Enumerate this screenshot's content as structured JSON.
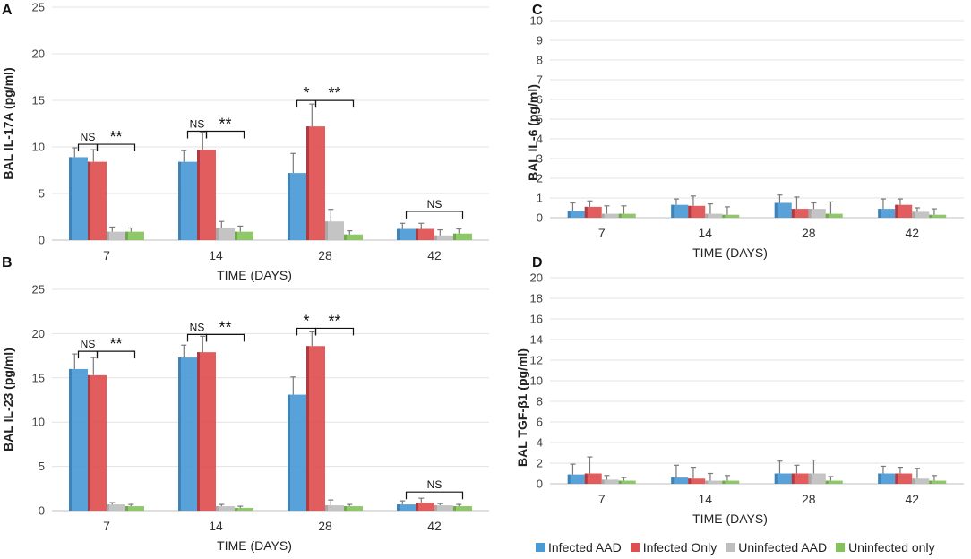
{
  "series_colors": [
    "#4a9ad6",
    "#df4f4f",
    "#bfbfbf",
    "#84c35b"
  ],
  "series_shade": [
    "#3c7fb3",
    "#a8363f",
    "#a6a6a6",
    "#6aa646"
  ],
  "legend": [
    "Infected AAD",
    "Infected Only",
    "Uninfected AAD",
    "Uninfected only"
  ],
  "chart_data": [
    {
      "panel": "A",
      "type": "bar",
      "title": "",
      "xlabel": "TIME (DAYS)",
      "ylabel": "BAL IL-17A (pg/ml)",
      "categories": [
        "7",
        "14",
        "28",
        "42"
      ],
      "ylim": [
        0,
        25
      ],
      "yticks": [
        "0",
        "5",
        "10",
        "15",
        "20",
        "25"
      ],
      "series": [
        {
          "name": "Infected AAD",
          "values": [
            8.9,
            8.4,
            7.2,
            1.2
          ],
          "errors": [
            1.0,
            1.2,
            2.1,
            0.6
          ]
        },
        {
          "name": "Infected Only",
          "values": [
            8.4,
            9.7,
            12.2,
            1.2
          ],
          "errors": [
            1.3,
            1.9,
            2.4,
            0.6
          ]
        },
        {
          "name": "Uninfected AAD",
          "values": [
            0.9,
            1.3,
            2.0,
            0.5
          ],
          "errors": [
            0.5,
            0.7,
            1.3,
            0.6
          ]
        },
        {
          "name": "Uninfected only",
          "values": [
            0.9,
            0.9,
            0.6,
            0.7
          ],
          "errors": [
            0.4,
            0.6,
            0.4,
            0.5
          ]
        }
      ],
      "annotations": [
        {
          "label": "NS",
          "category": 0,
          "from": 0,
          "to": 1,
          "y": 9.9
        },
        {
          "label": "**",
          "category": 0,
          "from": 1,
          "to": 3,
          "y": 9.9
        },
        {
          "label": "NS",
          "category": 1,
          "from": 0,
          "to": 1,
          "y": 11.3
        },
        {
          "label": "**",
          "category": 1,
          "from": 1,
          "to": 3,
          "y": 11.3
        },
        {
          "label": "*",
          "category": 2,
          "from": 0,
          "to": 1,
          "y": 14.6
        },
        {
          "label": "**",
          "category": 2,
          "from": 1,
          "to": 3,
          "y": 14.6
        },
        {
          "label": "NS",
          "category": 3,
          "from": 0,
          "to": 3,
          "y": 2.7
        }
      ]
    },
    {
      "panel": "B",
      "type": "bar",
      "title": "",
      "xlabel": "TIME (DAYS)",
      "ylabel": "BAL  IL-23 (pg/ml)",
      "categories": [
        "7",
        "14",
        "28",
        "42"
      ],
      "ylim": [
        0,
        25
      ],
      "yticks": [
        "0",
        "5",
        "10",
        "15",
        "20",
        "25"
      ],
      "series": [
        {
          "name": "Infected AAD",
          "values": [
            16.0,
            17.3,
            13.1,
            0.7
          ],
          "errors": [
            1.7,
            1.4,
            2.0,
            0.4
          ]
        },
        {
          "name": "Infected Only",
          "values": [
            15.3,
            17.9,
            18.6,
            0.9
          ],
          "errors": [
            2.0,
            1.8,
            1.6,
            0.5
          ]
        },
        {
          "name": "Uninfected AAD",
          "values": [
            0.7,
            0.5,
            0.6,
            0.6
          ],
          "errors": [
            0.2,
            0.2,
            0.6,
            0.2
          ]
        },
        {
          "name": "Uninfected only",
          "values": [
            0.5,
            0.3,
            0.5,
            0.5
          ],
          "errors": [
            0.2,
            0.2,
            0.2,
            0.2
          ]
        }
      ],
      "annotations": [
        {
          "label": "NS",
          "category": 0,
          "from": 0,
          "to": 1,
          "y": 17.6
        },
        {
          "label": "**",
          "category": 0,
          "from": 1,
          "to": 3,
          "y": 17.6
        },
        {
          "label": "NS",
          "category": 1,
          "from": 0,
          "to": 1,
          "y": 19.5
        },
        {
          "label": "**",
          "category": 1,
          "from": 1,
          "to": 3,
          "y": 19.5
        },
        {
          "label": "*",
          "category": 2,
          "from": 0,
          "to": 1,
          "y": 20.2
        },
        {
          "label": "**",
          "category": 2,
          "from": 1,
          "to": 3,
          "y": 20.2
        },
        {
          "label": "NS",
          "category": 3,
          "from": 0,
          "to": 3,
          "y": 1.7
        }
      ]
    },
    {
      "panel": "C",
      "type": "bar",
      "title": "",
      "xlabel": "TIME (DAYS)",
      "ylabel": "BAL IL-6 (pg/ml)",
      "categories": [
        "7",
        "14",
        "28",
        "42"
      ],
      "ylim": [
        0,
        10
      ],
      "yticks": [
        "0",
        "1",
        "2",
        "3",
        "4",
        "5",
        "6",
        "7",
        "8",
        "9",
        "10"
      ],
      "series": [
        {
          "name": "Infected AAD",
          "values": [
            0.35,
            0.65,
            0.75,
            0.45
          ],
          "errors": [
            0.4,
            0.3,
            0.4,
            0.5
          ]
        },
        {
          "name": "Infected Only",
          "values": [
            0.55,
            0.6,
            0.45,
            0.65
          ],
          "errors": [
            0.3,
            0.5,
            0.6,
            0.3
          ]
        },
        {
          "name": "Uninfected AAD",
          "values": [
            0.2,
            0.2,
            0.45,
            0.3
          ],
          "errors": [
            0.4,
            0.5,
            0.3,
            0.2
          ]
        },
        {
          "name": "Uninfected only",
          "values": [
            0.2,
            0.15,
            0.2,
            0.15
          ],
          "errors": [
            0.4,
            0.4,
            0.6,
            0.3
          ]
        }
      ],
      "annotations": []
    },
    {
      "panel": "D",
      "type": "bar",
      "title": "",
      "xlabel": "TIME (DAYS)",
      "ylabel": "BAL TGF-β1 (pg/ml)",
      "categories": [
        "7",
        "14",
        "28",
        "42"
      ],
      "ylim": [
        0,
        20
      ],
      "yticks": [
        "0",
        "2",
        "4",
        "6",
        "8",
        "10",
        "12",
        "14",
        "16",
        "18",
        "20"
      ],
      "series": [
        {
          "name": "Infected AAD",
          "values": [
            0.9,
            0.6,
            1.0,
            1.0
          ],
          "errors": [
            1.0,
            1.2,
            1.2,
            0.7
          ]
        },
        {
          "name": "Infected Only",
          "values": [
            1.0,
            0.5,
            1.0,
            1.0
          ],
          "errors": [
            1.6,
            1.1,
            0.8,
            0.6
          ]
        },
        {
          "name": "Uninfected AAD",
          "values": [
            0.4,
            0.3,
            1.0,
            0.5
          ],
          "errors": [
            0.4,
            0.7,
            1.3,
            1.0
          ]
        },
        {
          "name": "Uninfected only",
          "values": [
            0.3,
            0.3,
            0.3,
            0.3
          ],
          "errors": [
            0.3,
            0.5,
            0.4,
            0.5
          ]
        }
      ],
      "annotations": []
    }
  ]
}
